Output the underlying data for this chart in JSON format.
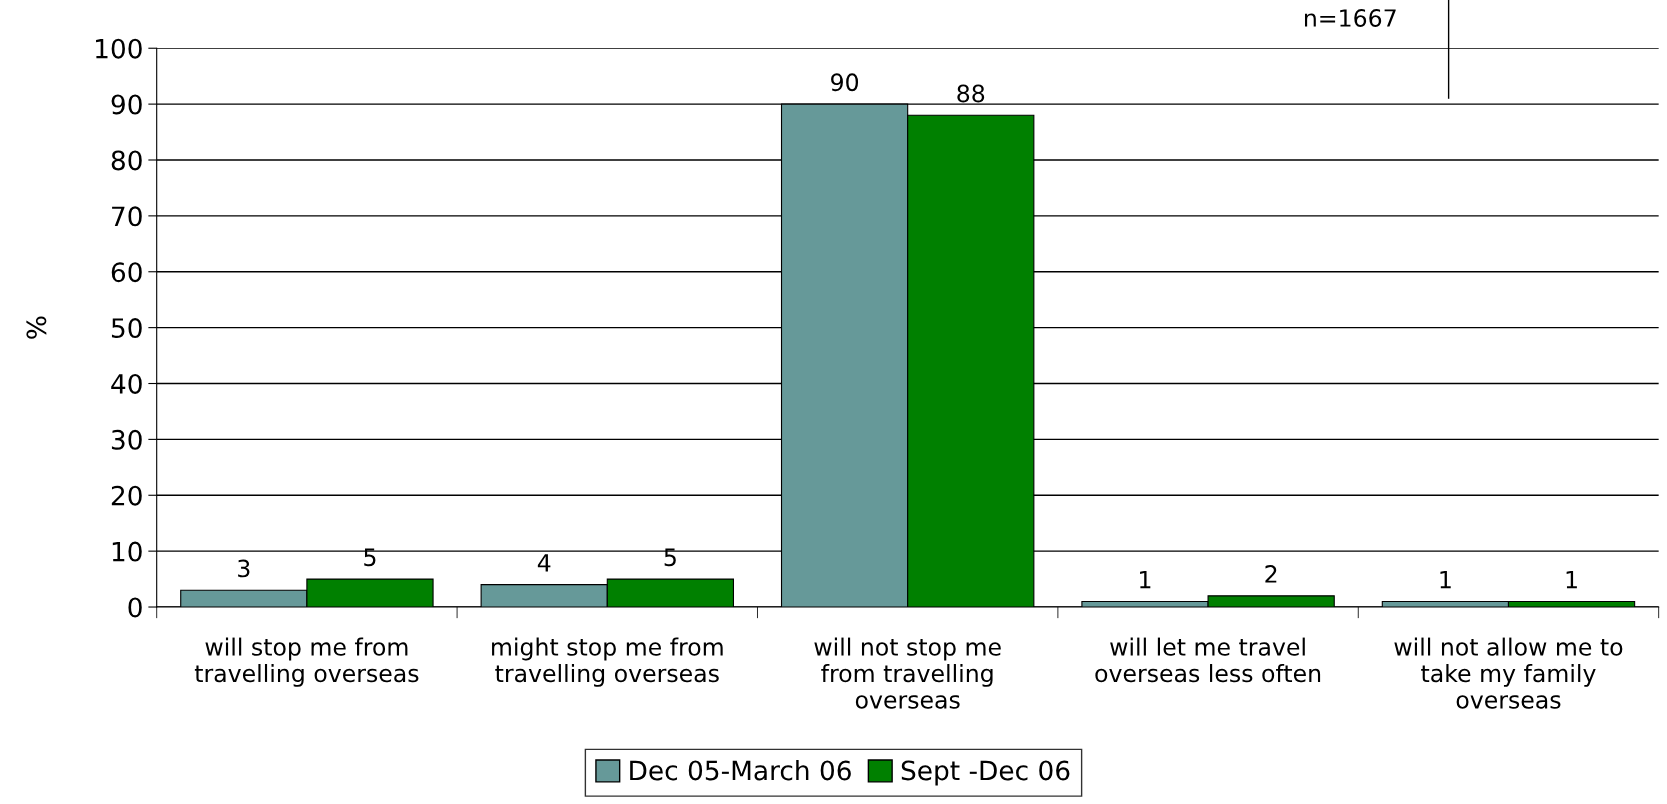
{
  "chart_data": {
    "type": "bar",
    "ylabel": "%",
    "categories": [
      "will stop me from\ntravelling overseas",
      "might stop me from\ntravelling overseas",
      "will not stop me\nfrom travelling\noverseas",
      "will let me travel\noverseas less often",
      "will not allow me to\ntake my family\noverseas"
    ],
    "series": [
      {
        "name": "Dec 05-March 06",
        "color": "#669999",
        "values": [
          3,
          4,
          90,
          1,
          1
        ]
      },
      {
        "name": "Sept -Dec 06",
        "color": "#008000",
        "values": [
          5,
          5,
          88,
          2,
          1
        ]
      }
    ],
    "ylim": [
      0,
      100
    ],
    "yticks": [
      0,
      10,
      20,
      30,
      40,
      50,
      60,
      70,
      80,
      90,
      100
    ],
    "grid": "y",
    "legend": "bottom",
    "data_labels": true,
    "annotations": [
      "n=1667"
    ]
  }
}
